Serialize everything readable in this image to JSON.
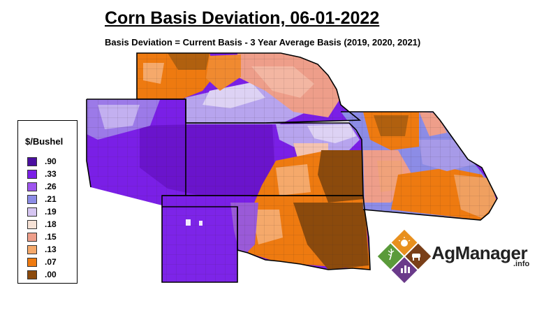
{
  "title": "Corn Basis Deviation, 06-01-2022",
  "subtitle": "Basis Deviation = Current Basis - 3 Year Average Basis (2019, 2020, 2021)",
  "legend": {
    "title": "$/Bushel",
    "items": [
      {
        "label": ".90",
        "color": "#4b0fa0"
      },
      {
        "label": ".33",
        "color": "#7a1fe6"
      },
      {
        "label": ".26",
        "color": "#9e55ee"
      },
      {
        "label": ".21",
        "color": "#8c8ce6"
      },
      {
        "label": ".19",
        "color": "#d6c6f2"
      },
      {
        "label": ".18",
        "color": "#f6e2d6"
      },
      {
        "label": ".15",
        "color": "#ee9e8a"
      },
      {
        "label": ".13",
        "color": "#f5a96b"
      },
      {
        "label": ".07",
        "color": "#ee7a10"
      },
      {
        "label": ".00",
        "color": "#8b4a0c"
      }
    ]
  },
  "logo": {
    "name": "AgManager",
    "suffix": ".info",
    "colors": {
      "orange": "#e8901e",
      "brown": "#7a3f18",
      "green": "#5a9a3a",
      "purple": "#6a3a8a"
    }
  }
}
